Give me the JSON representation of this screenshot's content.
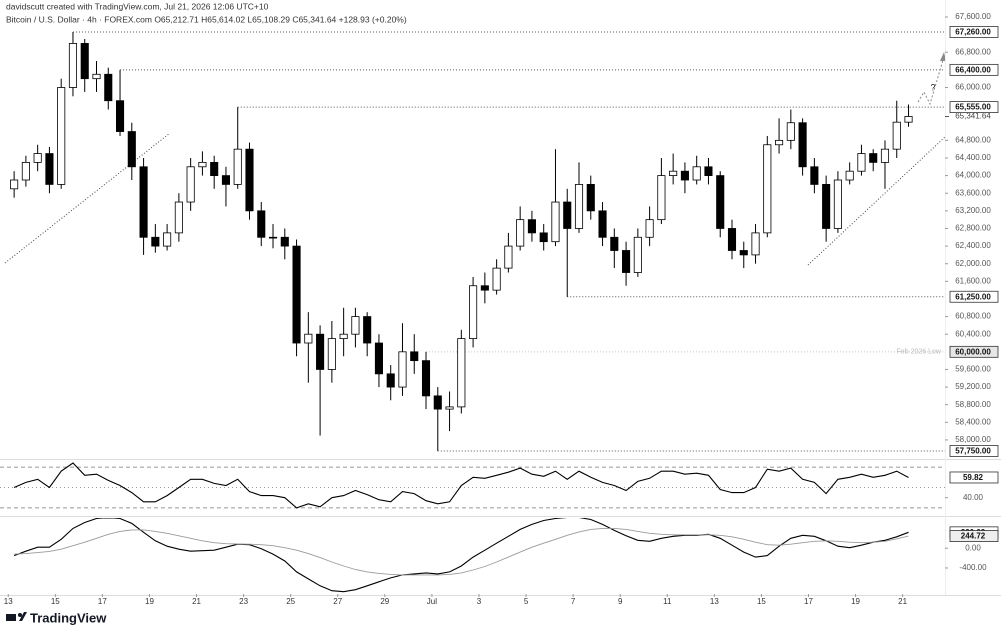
{
  "header": {
    "author_line": "davidscutt created with TradingView.com, Jul 21, 2026 12:06 UTC+10",
    "symbol_line": "Bitcoin / U.S. Dollar · 4h · FOREX.com  O65,212.71 H65,614.02 L65,108.29 C65,341.64 +128.93 (+0.20%)"
  },
  "brand": "TradingView",
  "chart_data": [
    {
      "type": "candlestick",
      "up_color": "#ffffff",
      "down_color": "#000000",
      "open": [
        63700,
        63900,
        64300,
        64500,
        63800,
        66000,
        67000,
        66200,
        66300,
        65700,
        65000,
        64200,
        62600,
        62400,
        62700,
        63400,
        64200,
        64300,
        64000,
        63800,
        64600,
        63200,
        62600,
        62600,
        62400,
        60200,
        60400,
        59600,
        60300,
        60400,
        60800,
        60200,
        59500,
        59200,
        60000,
        59800,
        59000,
        58700,
        58750,
        60300,
        61500,
        61400,
        61900,
        62400,
        63000,
        62700,
        62500,
        63400,
        62800,
        63800,
        63200,
        62600,
        62300,
        61800,
        62600,
        63000,
        64000,
        64100,
        63900,
        64200,
        64000,
        62800,
        62300,
        62200,
        62700,
        64700,
        64800,
        65200,
        64200,
        63800,
        62800,
        63900,
        64100,
        64500,
        64300,
        64600,
        65212.71
      ],
      "high": [
        64100,
        64450,
        64700,
        64650,
        66200,
        67260,
        67100,
        66600,
        66450,
        66400,
        65200,
        64400,
        62900,
        62900,
        63600,
        64400,
        64550,
        64450,
        64200,
        65555,
        64750,
        63400,
        62900,
        62800,
        62550,
        60900,
        60600,
        60700,
        61000,
        61000,
        60900,
        60400,
        59700,
        60650,
        60400,
        60000,
        59200,
        59100,
        60500,
        61700,
        61800,
        62100,
        62700,
        63300,
        63200,
        62900,
        64600,
        63700,
        64300,
        64000,
        63400,
        62800,
        62500,
        62800,
        63300,
        64400,
        64500,
        64300,
        64450,
        64400,
        64100,
        63000,
        62500,
        62900,
        64900,
        65300,
        65500,
        65300,
        64400,
        64000,
        64100,
        64300,
        64700,
        64600,
        64800,
        65700,
        65614.02
      ],
      "low": [
        63500,
        63750,
        64100,
        63600,
        63700,
        65800,
        65900,
        65900,
        65500,
        64900,
        63900,
        62200,
        62250,
        62300,
        62500,
        63200,
        64000,
        63700,
        63300,
        63700,
        63000,
        62400,
        62350,
        62100,
        59900,
        59300,
        58100,
        59300,
        59900,
        60100,
        59900,
        59200,
        58900,
        59000,
        59500,
        58700,
        57750,
        58200,
        58600,
        60100,
        61100,
        61300,
        61800,
        62300,
        62500,
        62300,
        62400,
        61250,
        62700,
        63000,
        62400,
        61900,
        61500,
        61700,
        62400,
        62900,
        63800,
        63600,
        63800,
        63800,
        62600,
        62100,
        61900,
        62000,
        62600,
        64500,
        64600,
        64000,
        63600,
        62500,
        62700,
        63800,
        64000,
        64100,
        63700,
        64400,
        65108.29
      ],
      "close": [
        63900,
        64300,
        64500,
        63800,
        66000,
        67000,
        66200,
        66300,
        65700,
        65000,
        64200,
        62600,
        62400,
        62700,
        63400,
        64200,
        64300,
        64000,
        63800,
        64600,
        63200,
        62600,
        62600,
        62400,
        60200,
        60400,
        59600,
        60300,
        60400,
        60800,
        60200,
        59500,
        59200,
        60000,
        59800,
        59000,
        58700,
        58750,
        60300,
        61500,
        61400,
        61900,
        62400,
        63000,
        62700,
        62500,
        63400,
        62800,
        63800,
        63200,
        62600,
        62300,
        61800,
        62600,
        63000,
        64000,
        64100,
        63900,
        64200,
        64000,
        62800,
        62300,
        62200,
        62700,
        64700,
        64800,
        65200,
        64200,
        63800,
        62800,
        63900,
        64100,
        64500,
        64300,
        64600,
        65212.71,
        65341.64
      ],
      "xlim": [
        -0.7,
        79.6
      ],
      "xticks": [
        {
          "value": 0,
          "label": "13"
        },
        {
          "value": 4,
          "label": "15"
        },
        {
          "value": 8,
          "label": "17"
        },
        {
          "value": 12,
          "label": "19"
        },
        {
          "value": 16,
          "label": "21"
        },
        {
          "value": 20,
          "label": "23"
        },
        {
          "value": 24,
          "label": "25"
        },
        {
          "value": 28,
          "label": "27"
        },
        {
          "value": 32,
          "label": "29"
        },
        {
          "value": 36,
          "label": "Jul"
        },
        {
          "value": 40,
          "label": "3"
        },
        {
          "value": 44,
          "label": "5"
        },
        {
          "value": 48,
          "label": "7"
        },
        {
          "value": 52,
          "label": "9"
        },
        {
          "value": 56,
          "label": "11"
        },
        {
          "value": 60,
          "label": "13"
        },
        {
          "value": 64,
          "label": "15"
        },
        {
          "value": 68,
          "label": "17"
        },
        {
          "value": 72,
          "label": "19"
        },
        {
          "value": 76,
          "label": "21"
        }
      ],
      "ylim": [
        57590,
        67986
      ],
      "yticks": [
        {
          "value": 67600,
          "label": "67,600.00"
        },
        {
          "value": 66800,
          "label": "66,800.00"
        },
        {
          "value": 66000,
          "label": "66,000.00"
        },
        {
          "value": 64800,
          "label": "64,800.00"
        },
        {
          "value": 64400,
          "label": "64,400.00"
        },
        {
          "value": 64000,
          "label": "64,000.00"
        },
        {
          "value": 63600,
          "label": "63,600.00"
        },
        {
          "value": 63200,
          "label": "63,200.00"
        },
        {
          "value": 62800,
          "label": "62,800.00"
        },
        {
          "value": 62400,
          "label": "62,400.00"
        },
        {
          "value": 62000,
          "label": "62,000.00"
        },
        {
          "value": 61600,
          "label": "61,600.00"
        },
        {
          "value": 60800,
          "label": "60,800.00"
        },
        {
          "value": 60400,
          "label": "60,400.00"
        },
        {
          "value": 59600,
          "label": "59,600.00"
        },
        {
          "value": 59200,
          "label": "59,200.00"
        },
        {
          "value": 58800,
          "label": "58,800.00"
        },
        {
          "value": 58400,
          "label": "58,400.00"
        },
        {
          "value": 58000,
          "label": "58,000.00"
        }
      ],
      "levels": [
        {
          "value": 67260,
          "label": "67,260.00"
        },
        {
          "value": 66400,
          "label": "66,400.00"
        },
        {
          "value": 65555,
          "label": "65,555.00"
        },
        {
          "value": 61250,
          "label": "61,250.00"
        },
        {
          "value": 60000,
          "label": "60,000.00",
          "note": "Feb 2026 Low"
        },
        {
          "value": 57750,
          "label": "57,750.00"
        }
      ],
      "last_price": {
        "value": 65341.64,
        "label": "65,341.64"
      },
      "annotation": "?"
    },
    {
      "type": "line",
      "xlim": [
        -0.7,
        79.6
      ],
      "ylim": [
        23,
        76
      ],
      "bands": [
        70,
        50,
        30
      ],
      "yticks": [
        {
          "value": 40,
          "label": "40.00"
        }
      ],
      "series": [
        {
          "color": "#000000",
          "values": [
            50,
            55,
            58,
            50,
            66,
            74,
            62,
            63,
            57,
            52,
            45,
            36,
            36,
            42,
            50,
            58,
            58,
            54,
            52,
            58,
            46,
            42,
            42,
            40,
            30,
            34,
            31,
            40,
            42,
            47,
            43,
            38,
            36,
            46,
            44,
            37,
            34,
            36,
            52,
            60,
            59,
            62,
            65,
            69,
            63,
            61,
            66,
            58,
            66,
            60,
            55,
            52,
            47,
            56,
            59,
            66,
            66,
            63,
            64,
            62,
            48,
            45,
            45,
            50,
            68,
            66,
            69,
            58,
            55,
            44,
            58,
            60,
            63,
            60,
            62,
            66,
            59.82
          ]
        }
      ]
    },
    {
      "type": "line",
      "xlim": [
        -0.7,
        79.6
      ],
      "ylim": [
        -926,
        610
      ],
      "yticks": [
        {
          "value": 0,
          "label": "0.00"
        },
        {
          "value": -400,
          "label": "-400.00"
        }
      ],
      "series": [
        {
          "color": "#000000",
          "values": [
            -150,
            -60,
            20,
            20,
            180,
            400,
            520,
            600,
            620,
            600,
            500,
            320,
            150,
            40,
            -20,
            -60,
            -50,
            -40,
            20,
            80,
            70,
            -10,
            -120,
            -260,
            -480,
            -620,
            -760,
            -860,
            -880,
            -840,
            -760,
            -680,
            -600,
            -540,
            -520,
            -500,
            -520,
            -480,
            -360,
            -180,
            -40,
            100,
            240,
            380,
            480,
            560,
            600,
            620,
            620,
            580,
            480,
            360,
            250,
            160,
            140,
            200,
            240,
            260,
            260,
            280,
            200,
            60,
            -80,
            -180,
            -150,
            40,
            200,
            260,
            240,
            150,
            40,
            10,
            60,
            120,
            160,
            230,
            320.02
          ]
        },
        {
          "color": "#9a9a9a",
          "values": [
            -120,
            -110,
            -90,
            -65,
            -20,
            50,
            120,
            200,
            280,
            340,
            370,
            370,
            340,
            300,
            250,
            200,
            150,
            110,
            90,
            85,
            80,
            70,
            50,
            10,
            -40,
            -110,
            -190,
            -280,
            -360,
            -430,
            -480,
            -510,
            -530,
            -540,
            -540,
            -540,
            -540,
            -530,
            -500,
            -440,
            -370,
            -280,
            -180,
            -80,
            20,
            100,
            180,
            260,
            330,
            380,
            400,
            400,
            380,
            340,
            300,
            280,
            270,
            270,
            270,
            270,
            260,
            230,
            180,
            120,
            70,
            60,
            80,
            110,
            140,
            150,
            140,
            120,
            110,
            120,
            140,
            190,
            244.72
          ]
        }
      ]
    }
  ]
}
